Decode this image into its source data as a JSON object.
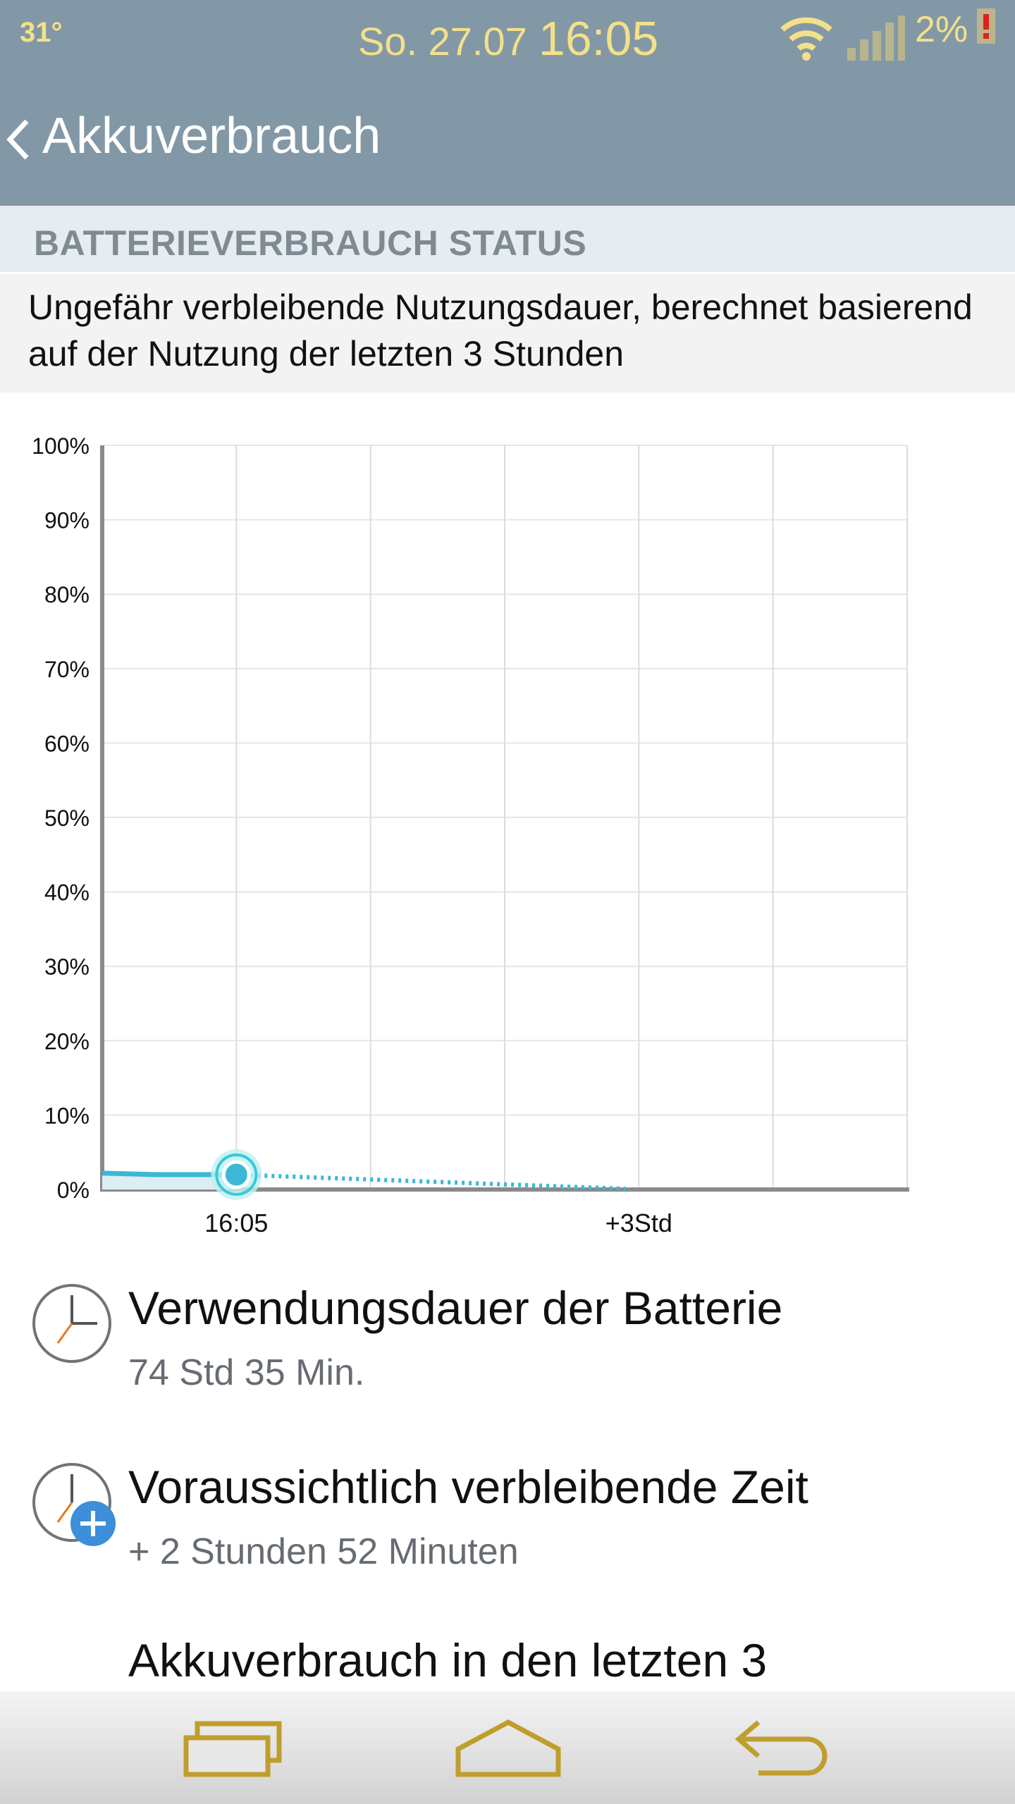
{
  "status_bar": {
    "temperature": "31°",
    "date": "So. 27.07",
    "time": "16:05",
    "battery_percent": "2%",
    "icons": [
      "wifi-icon",
      "signal-icon",
      "battery-low-icon"
    ],
    "text_color": "#f3e08a"
  },
  "action_bar": {
    "title": "Akkuverbrauch",
    "background": "#8398a6"
  },
  "section": {
    "header": "BATTERIEVERBRAUCH STATUS",
    "description": "Ungefähr verbleibende Nutzungsdauer, berechnet basierend auf der Nutzung der letzten 3 Stunden"
  },
  "chart_data": {
    "type": "line",
    "title": "",
    "xlabel": "",
    "ylabel": "",
    "y_ticks": [
      "100%",
      "90%",
      "80%",
      "70%",
      "60%",
      "50%",
      "40%",
      "30%",
      "20%",
      "10%",
      "0%"
    ],
    "ylim": [
      0,
      100
    ],
    "x_ticks": [
      "16:05",
      "+3Std"
    ],
    "xlim_hours": [
      -1,
      5
    ],
    "grid": true,
    "series": [
      {
        "style": "solid",
        "color": "#3bb8d6",
        "x_hours": [
          -1,
          -0.6,
          0
        ],
        "values": [
          2.2,
          2.0,
          2.0
        ]
      },
      {
        "style": "dotted",
        "color": "#3bb8d6",
        "x_hours": [
          0,
          2.9
        ],
        "values": [
          2.0,
          0.1
        ]
      }
    ],
    "current_point": {
      "x_hours": 0,
      "value": 2
    }
  },
  "items": [
    {
      "title": "Verwendungsdauer der Batterie",
      "value": "74 Std 35 Min.",
      "icon": "clock-icon"
    },
    {
      "title": "Voraussichtlich verbleibende Zeit",
      "value": "+ 2 Stunden 52 Minuten",
      "icon": "clock-plus-icon"
    }
  ],
  "partial_item_title": "Akkuverbrauch in den letzten 3",
  "nav_bar": {
    "buttons": [
      "recent-apps-button",
      "home-button",
      "back-button"
    ],
    "icon_color": "#bf9e2c"
  }
}
